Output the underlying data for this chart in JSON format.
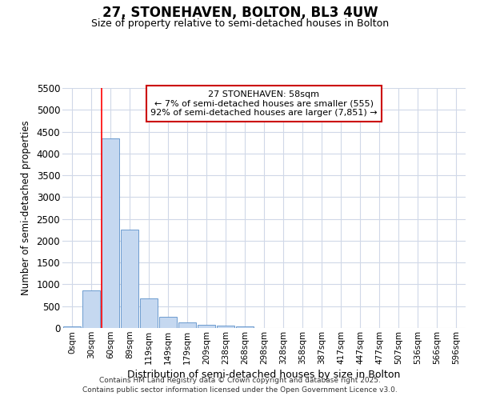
{
  "title": "27, STONEHAVEN, BOLTON, BL3 4UW",
  "subtitle": "Size of property relative to semi-detached houses in Bolton",
  "xlabel": "Distribution of semi-detached houses by size in Bolton",
  "ylabel": "Number of semi-detached properties",
  "categories": [
    "0sqm",
    "30sqm",
    "60sqm",
    "89sqm",
    "119sqm",
    "149sqm",
    "179sqm",
    "209sqm",
    "238sqm",
    "268sqm",
    "298sqm",
    "328sqm",
    "358sqm",
    "387sqm",
    "417sqm",
    "447sqm",
    "477sqm",
    "507sqm",
    "536sqm",
    "566sqm",
    "596sqm"
  ],
  "values": [
    30,
    855,
    4350,
    2250,
    670,
    255,
    130,
    65,
    55,
    35,
    0,
    0,
    0,
    0,
    0,
    0,
    0,
    0,
    0,
    0,
    0
  ],
  "bar_color": "#c5d8f0",
  "bar_edge_color": "#5b8fc9",
  "red_line_index": 2,
  "annotation_title": "27 STONEHAVEN: 58sqm",
  "annotation_line1": "← 7% of semi-detached houses are smaller (555)",
  "annotation_line2": "92% of semi-detached houses are larger (7,851) →",
  "annotation_box_color": "#cc0000",
  "ylim": [
    0,
    5500
  ],
  "yticks": [
    0,
    500,
    1000,
    1500,
    2000,
    2500,
    3000,
    3500,
    4000,
    4500,
    5000,
    5500
  ],
  "background_color": "#ffffff",
  "grid_color": "#d0d8e8",
  "footer_line1": "Contains HM Land Registry data © Crown copyright and database right 2025.",
  "footer_line2": "Contains public sector information licensed under the Open Government Licence v3.0."
}
